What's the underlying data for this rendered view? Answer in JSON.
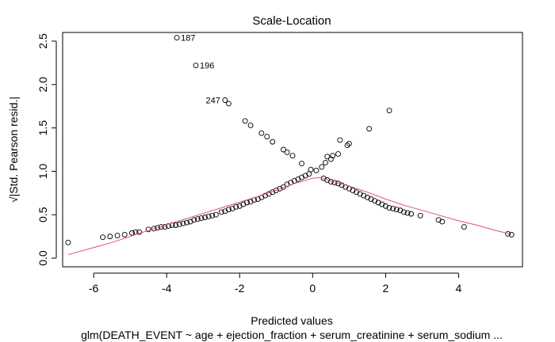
{
  "chart_data": {
    "type": "scatter",
    "title": "Scale-Location",
    "xlabel": "Predicted values",
    "ylabel": "√|Std. Pearson resid.|",
    "subtitle": "glm(DEATH_EVENT ~ age + ejection_fraction + serum_creatinine + serum_sodium ...",
    "xlim": [
      -6.85,
      5.75
    ],
    "ylim": [
      -0.1,
      2.6
    ],
    "xticks": [
      -6,
      -4,
      -2,
      0,
      2,
      4
    ],
    "yticks": [
      0.0,
      0.5,
      1.0,
      1.5,
      2.0,
      2.5
    ],
    "xtick_labels": [
      "-6",
      "-4",
      "-2",
      "0",
      "2",
      "4"
    ],
    "ytick_labels": [
      "0.0",
      "0.5",
      "1.0",
      "1.5",
      "2.0",
      "2.5"
    ],
    "grid": false,
    "point_color": "#000000",
    "smoother_color": "#DF536B",
    "points": [
      [
        -6.7,
        0.18
      ],
      [
        -5.75,
        0.24
      ],
      [
        -5.55,
        0.25
      ],
      [
        -5.35,
        0.26
      ],
      [
        -5.15,
        0.27
      ],
      [
        -4.95,
        0.29
      ],
      [
        -4.85,
        0.3
      ],
      [
        -4.75,
        0.3
      ],
      [
        -4.5,
        0.33
      ],
      [
        -4.35,
        0.34
      ],
      [
        -4.25,
        0.35
      ],
      [
        -4.15,
        0.36
      ],
      [
        -4.05,
        0.36
      ],
      [
        -3.95,
        0.37
      ],
      [
        -3.85,
        0.38
      ],
      [
        -3.75,
        0.38
      ],
      [
        -3.65,
        0.39
      ],
      [
        -3.55,
        0.4
      ],
      [
        -3.45,
        0.41
      ],
      [
        -3.35,
        0.42
      ],
      [
        -3.25,
        0.44
      ],
      [
        -3.15,
        0.45
      ],
      [
        -3.05,
        0.46
      ],
      [
        -2.95,
        0.47
      ],
      [
        -2.85,
        0.48
      ],
      [
        -2.75,
        0.49
      ],
      [
        -2.65,
        0.5
      ],
      [
        -2.5,
        0.53
      ],
      [
        -2.4,
        0.54
      ],
      [
        -2.3,
        0.56
      ],
      [
        -2.2,
        0.57
      ],
      [
        -2.1,
        0.59
      ],
      [
        -2.0,
        0.6
      ],
      [
        -1.9,
        0.62
      ],
      [
        -1.8,
        0.64
      ],
      [
        -1.7,
        0.65
      ],
      [
        -1.6,
        0.67
      ],
      [
        -1.5,
        0.68
      ],
      [
        -1.4,
        0.7
      ],
      [
        -1.3,
        0.72
      ],
      [
        -1.2,
        0.74
      ],
      [
        -1.1,
        0.76
      ],
      [
        -1.0,
        0.78
      ],
      [
        -0.9,
        0.8
      ],
      [
        -0.8,
        0.82
      ],
      [
        -0.7,
        0.85
      ],
      [
        -0.6,
        0.87
      ],
      [
        -0.5,
        0.89
      ],
      [
        -0.4,
        0.91
      ],
      [
        -0.3,
        0.93
      ],
      [
        -0.2,
        0.95
      ],
      [
        -0.1,
        0.97
      ],
      [
        0.3,
        0.92
      ],
      [
        0.4,
        0.9
      ],
      [
        0.5,
        0.88
      ],
      [
        0.6,
        0.87
      ],
      [
        0.7,
        0.86
      ],
      [
        0.8,
        0.84
      ],
      [
        0.9,
        0.82
      ],
      [
        1.0,
        0.8
      ],
      [
        1.1,
        0.78
      ],
      [
        1.2,
        0.76
      ],
      [
        1.3,
        0.74
      ],
      [
        1.4,
        0.72
      ],
      [
        1.5,
        0.7
      ],
      [
        1.6,
        0.68
      ],
      [
        1.7,
        0.66
      ],
      [
        1.8,
        0.64
      ],
      [
        1.9,
        0.62
      ],
      [
        2.0,
        0.6
      ],
      [
        2.1,
        0.58
      ],
      [
        2.2,
        0.57
      ],
      [
        2.3,
        0.56
      ],
      [
        2.4,
        0.55
      ],
      [
        2.5,
        0.53
      ],
      [
        2.6,
        0.52
      ],
      [
        2.7,
        0.51
      ],
      [
        2.95,
        0.49
      ],
      [
        3.45,
        0.44
      ],
      [
        3.55,
        0.42
      ],
      [
        4.15,
        0.36
      ],
      [
        5.35,
        0.28
      ],
      [
        5.45,
        0.27
      ],
      [
        -3.72,
        2.54
      ],
      [
        -3.2,
        2.22
      ],
      [
        -2.4,
        1.82
      ],
      [
        -2.3,
        1.78
      ],
      [
        -1.85,
        1.58
      ],
      [
        -1.7,
        1.53
      ],
      [
        -1.4,
        1.44
      ],
      [
        -1.25,
        1.4
      ],
      [
        -1.1,
        1.34
      ],
      [
        -0.8,
        1.25
      ],
      [
        -0.7,
        1.22
      ],
      [
        -0.55,
        1.18
      ],
      [
        -0.3,
        1.09
      ],
      [
        -0.05,
        1.02
      ],
      [
        0.1,
        1.01
      ],
      [
        0.25,
        1.05
      ],
      [
        0.35,
        1.1
      ],
      [
        0.4,
        1.17
      ],
      [
        0.5,
        1.14
      ],
      [
        0.55,
        1.18
      ],
      [
        0.7,
        1.2
      ],
      [
        0.75,
        1.36
      ],
      [
        0.95,
        1.3
      ],
      [
        1.0,
        1.32
      ],
      [
        1.55,
        1.49
      ],
      [
        2.1,
        1.7
      ]
    ],
    "point_labels": [
      {
        "text": "187",
        "x": -3.72,
        "y": 2.54,
        "side": "right"
      },
      {
        "text": "196",
        "x": -3.2,
        "y": 2.22,
        "side": "right"
      },
      {
        "text": "247",
        "x": -2.4,
        "y": 1.82,
        "side": "left"
      }
    ],
    "smoother": [
      [
        -6.7,
        0.04
      ],
      [
        -5.5,
        0.18
      ],
      [
        -4.5,
        0.32
      ],
      [
        -3.5,
        0.45
      ],
      [
        -2.5,
        0.58
      ],
      [
        -1.5,
        0.71
      ],
      [
        -1.0,
        0.78
      ],
      [
        -0.5,
        0.86
      ],
      [
        0.0,
        0.92
      ],
      [
        0.2,
        0.93
      ],
      [
        0.5,
        0.89
      ],
      [
        1.0,
        0.83
      ],
      [
        1.5,
        0.76
      ],
      [
        2.0,
        0.68
      ],
      [
        2.5,
        0.61
      ],
      [
        3.0,
        0.55
      ],
      [
        3.5,
        0.49
      ],
      [
        4.0,
        0.43
      ],
      [
        4.5,
        0.38
      ],
      [
        5.0,
        0.32
      ],
      [
        5.4,
        0.28
      ]
    ]
  }
}
